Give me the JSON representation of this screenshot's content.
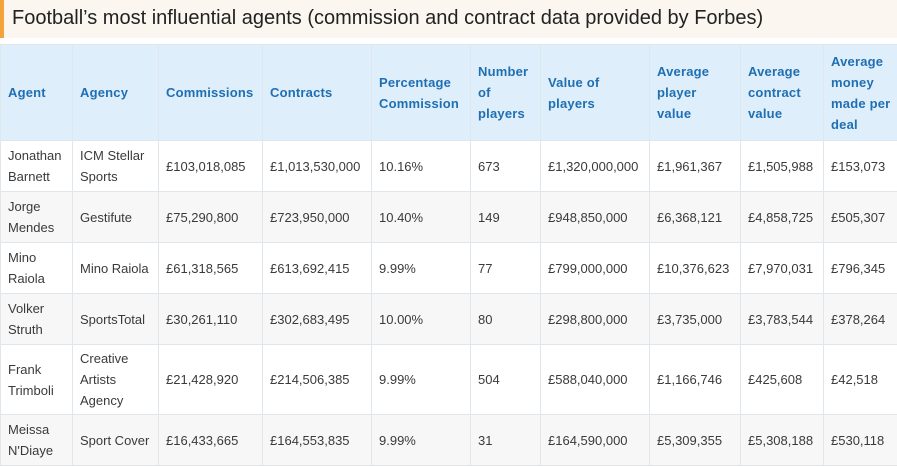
{
  "title": "Football’s most influential agents (commission and contract data provided by Forbes)",
  "table": {
    "headers": [
      "Agent",
      "Agency",
      "Commissions",
      "Contracts",
      "Percentage Commission",
      "Number of players",
      "Value of players",
      "Average player value",
      "Average contract value",
      "Average money made per deal"
    ],
    "rows": [
      [
        "Jonathan Barnett",
        "ICM Stellar Sports",
        "£103,018,085",
        "£1,013,530,000",
        "10.16%",
        "673",
        "£1,320,000,000",
        "£1,961,367",
        "£1,505,988",
        "£153,073"
      ],
      [
        "Jorge Mendes",
        "Gestifute",
        "£75,290,800",
        "£723,950,000",
        "10.40%",
        "149",
        "£948,850,000",
        "£6,368,121",
        "£4,858,725",
        "£505,307"
      ],
      [
        "Mino Raiola",
        "Mino Raiola",
        "£61,318,565",
        "£613,692,415",
        "9.99%",
        "77",
        "£799,000,000",
        "£10,376,623",
        "£7,970,031",
        "£796,345"
      ],
      [
        "Volker Struth",
        "SportsTotal",
        "£30,261,110",
        "£302,683,495",
        "10.00%",
        "80",
        "£298,800,000",
        "£3,735,000",
        "£3,783,544",
        "£378,264"
      ],
      [
        "Frank Trimboli",
        "Creative Artists Agency",
        "£21,428,920",
        "£214,506,385",
        "9.99%",
        "504",
        "£588,040,000",
        "£1,166,746",
        "£425,608",
        "£42,518"
      ],
      [
        "Meissa N'Diaye",
        "Sport Cover",
        "£16,433,665",
        "£164,553,835",
        "9.99%",
        "31",
        "£164,590,000",
        "£5,309,355",
        "£5,308,188",
        "£530,118"
      ]
    ]
  }
}
